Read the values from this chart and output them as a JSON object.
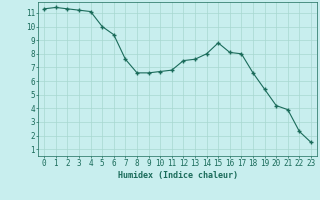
{
  "x": [
    0,
    1,
    2,
    3,
    4,
    5,
    6,
    7,
    8,
    9,
    10,
    11,
    12,
    13,
    14,
    15,
    16,
    17,
    18,
    19,
    20,
    21,
    22,
    23
  ],
  "y": [
    11.3,
    11.4,
    11.3,
    11.2,
    11.1,
    10.0,
    9.4,
    7.6,
    6.6,
    6.6,
    6.7,
    6.8,
    7.5,
    7.6,
    8.0,
    8.8,
    8.1,
    8.0,
    6.6,
    5.4,
    4.2,
    3.9,
    2.3,
    1.5
  ],
  "line_color": "#1a6b5a",
  "marker_color": "#1a6b5a",
  "bg_color": "#c8eeee",
  "grid_color": "#a8d8d0",
  "xlabel": "Humidex (Indice chaleur)",
  "xlim": [
    -0.5,
    23.5
  ],
  "ylim": [
    0.5,
    11.8
  ],
  "yticks": [
    1,
    2,
    3,
    4,
    5,
    6,
    7,
    8,
    9,
    10,
    11
  ],
  "xticks": [
    0,
    1,
    2,
    3,
    4,
    5,
    6,
    7,
    8,
    9,
    10,
    11,
    12,
    13,
    14,
    15,
    16,
    17,
    18,
    19,
    20,
    21,
    22,
    23
  ],
  "xlabel_fontsize": 6.0,
  "tick_fontsize": 5.5
}
